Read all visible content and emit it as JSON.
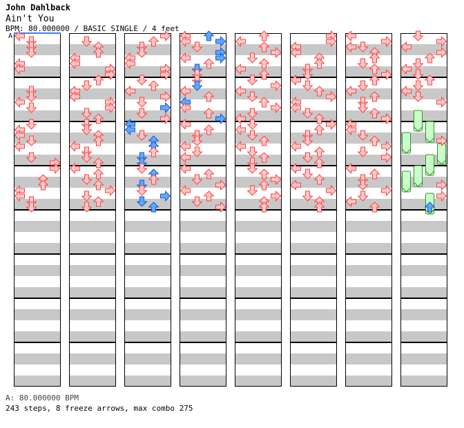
{
  "header": {
    "artist": "John Dahlback",
    "title": "Ain't You",
    "meta": "BPM: 80.000000 / BASIC SINGLE / 4 feet",
    "marker": "A"
  },
  "footer": {
    "bpm_line": "A: 80.000000 BPM",
    "stats_line": "243 steps, 8 freeze arrows, max combo 275"
  },
  "colors": {
    "stripe": "#c8c8c8",
    "red_fill": "#ffc8c8",
    "red_stroke": "#ff4040",
    "blue_fill": "#60a8ff",
    "blue_stroke": "#1858c8",
    "freeze_fill": "#c8ffc8",
    "freeze_stroke": "#309030",
    "marker_line": "#3080ff"
  },
  "chart_data": {
    "type": "stepchart",
    "columns": 8,
    "measures_per_column": 8,
    "lanes": [
      "left",
      "down",
      "up",
      "right"
    ],
    "steps_total": 243,
    "freeze_arrows": 8,
    "max_combo": 275,
    "notes": [
      [
        0,
        0,
        0,
        3
      ],
      [
        0,
        1,
        1,
        3
      ],
      [
        0,
        2,
        1,
        3
      ],
      [
        0,
        3,
        1,
        3
      ],
      [
        0,
        5,
        0,
        3
      ],
      [
        0,
        6,
        0,
        3
      ],
      [
        0,
        10,
        1,
        3
      ],
      [
        0,
        11,
        1,
        3
      ],
      [
        0,
        12,
        0,
        3
      ],
      [
        0,
        13,
        1,
        3
      ],
      [
        0,
        16,
        1,
        3
      ],
      [
        0,
        17,
        0,
        3
      ],
      [
        0,
        18,
        0,
        3
      ],
      [
        0,
        19,
        1,
        3
      ],
      [
        0,
        20,
        0,
        3
      ],
      [
        0,
        22,
        1,
        3
      ],
      [
        0,
        23,
        3,
        3
      ],
      [
        0,
        24,
        3,
        3
      ],
      [
        0,
        26,
        2,
        3
      ],
      [
        0,
        27,
        2,
        3
      ],
      [
        0,
        28,
        0,
        3
      ],
      [
        0,
        29,
        0,
        3
      ],
      [
        0,
        30,
        1,
        3
      ],
      [
        0,
        31,
        1,
        3
      ],
      [
        1,
        1,
        1,
        3
      ],
      [
        1,
        2,
        2,
        3
      ],
      [
        1,
        3,
        2,
        3
      ],
      [
        1,
        4,
        0,
        3
      ],
      [
        1,
        5,
        0,
        3
      ],
      [
        1,
        6,
        3,
        3
      ],
      [
        1,
        7,
        3,
        3
      ],
      [
        1,
        8,
        2,
        3
      ],
      [
        1,
        9,
        1,
        3
      ],
      [
        1,
        10,
        0,
        3
      ],
      [
        1,
        11,
        0,
        3
      ],
      [
        1,
        12,
        3,
        3
      ],
      [
        1,
        13,
        3,
        3
      ],
      [
        1,
        14,
        1,
        3
      ],
      [
        1,
        15,
        2,
        3
      ],
      [
        1,
        16,
        1,
        3
      ],
      [
        1,
        17,
        1,
        3
      ],
      [
        1,
        18,
        2,
        3
      ],
      [
        1,
        19,
        2,
        3
      ],
      [
        1,
        20,
        0,
        3
      ],
      [
        1,
        21,
        1,
        3
      ],
      [
        1,
        22,
        1,
        3
      ],
      [
        1,
        23,
        2,
        3
      ],
      [
        1,
        24,
        0,
        3
      ],
      [
        1,
        25,
        2,
        3
      ],
      [
        1,
        26,
        1,
        3
      ],
      [
        1,
        27,
        2,
        3
      ],
      [
        1,
        28,
        3,
        3
      ],
      [
        1,
        29,
        1,
        3
      ],
      [
        1,
        30,
        2,
        3
      ],
      [
        1,
        31,
        1,
        3
      ],
      [
        2,
        0,
        3,
        3
      ],
      [
        2,
        1,
        2,
        3
      ],
      [
        2,
        2,
        1,
        3
      ],
      [
        2,
        3,
        1,
        3
      ],
      [
        2,
        4,
        0,
        3
      ],
      [
        2,
        5,
        0,
        3
      ],
      [
        2,
        6,
        3,
        3
      ],
      [
        2,
        7,
        3,
        3
      ],
      [
        2,
        8,
        1,
        3
      ],
      [
        2,
        9,
        2,
        3
      ],
      [
        2,
        10,
        0,
        3
      ],
      [
        2,
        11,
        3,
        3
      ],
      [
        2,
        12,
        1,
        3
      ],
      [
        2,
        13,
        3,
        3
      ],
      [
        2,
        13,
        3,
        1
      ],
      [
        2,
        14,
        1,
        3
      ],
      [
        2,
        15,
        3,
        3
      ],
      [
        2,
        16,
        0,
        1
      ],
      [
        2,
        17,
        0,
        1
      ],
      [
        2,
        18,
        1,
        3
      ],
      [
        2,
        19,
        2,
        1
      ],
      [
        2,
        20,
        2,
        1
      ],
      [
        2,
        21,
        2,
        3
      ],
      [
        2,
        22,
        1,
        1
      ],
      [
        2,
        23,
        1,
        1
      ],
      [
        2,
        24,
        1,
        3
      ],
      [
        2,
        25,
        2,
        1
      ],
      [
        2,
        26,
        2,
        3
      ],
      [
        2,
        27,
        1,
        1
      ],
      [
        2,
        28,
        1,
        3
      ],
      [
        2,
        29,
        3,
        1
      ],
      [
        2,
        30,
        1,
        1
      ],
      [
        2,
        31,
        2,
        1
      ],
      [
        3,
        0,
        0,
        3
      ],
      [
        3,
        0,
        2,
        1
      ],
      [
        3,
        1,
        0,
        3
      ],
      [
        3,
        1,
        3,
        1
      ],
      [
        3,
        2,
        1,
        3
      ],
      [
        3,
        3,
        3,
        1
      ],
      [
        3,
        4,
        0,
        3
      ],
      [
        3,
        4,
        3,
        1
      ],
      [
        3,
        5,
        2,
        3
      ],
      [
        3,
        6,
        1,
        1
      ],
      [
        3,
        7,
        1,
        3
      ],
      [
        3,
        8,
        1,
        3
      ],
      [
        3,
        9,
        1,
        1
      ],
      [
        3,
        10,
        0,
        3
      ],
      [
        3,
        11,
        2,
        3
      ],
      [
        3,
        12,
        0,
        1
      ],
      [
        3,
        13,
        0,
        3
      ],
      [
        3,
        14,
        2,
        3
      ],
      [
        3,
        15,
        3,
        1
      ],
      [
        3,
        16,
        0,
        3
      ],
      [
        3,
        17,
        2,
        3
      ],
      [
        3,
        18,
        1,
        3
      ],
      [
        3,
        19,
        1,
        3
      ],
      [
        3,
        20,
        0,
        3
      ],
      [
        3,
        21,
        1,
        3
      ],
      [
        3,
        22,
        0,
        3
      ],
      [
        3,
        24,
        0,
        3
      ],
      [
        3,
        25,
        2,
        3
      ],
      [
        3,
        26,
        1,
        3
      ],
      [
        3,
        27,
        3,
        3
      ],
      [
        3,
        28,
        0,
        3
      ],
      [
        3,
        29,
        2,
        3
      ],
      [
        3,
        30,
        1,
        3
      ],
      [
        3,
        31,
        3,
        3
      ],
      [
        4,
        0,
        2,
        3
      ],
      [
        4,
        1,
        0,
        3
      ],
      [
        4,
        2,
        2,
        3
      ],
      [
        4,
        3,
        3,
        3
      ],
      [
        4,
        4,
        1,
        3
      ],
      [
        4,
        5,
        2,
        3
      ],
      [
        4,
        6,
        0,
        3
      ],
      [
        4,
        7,
        2,
        3
      ],
      [
        4,
        8,
        1,
        3
      ],
      [
        4,
        9,
        3,
        3
      ],
      [
        4,
        10,
        0,
        3
      ],
      [
        4,
        11,
        1,
        3
      ],
      [
        4,
        12,
        2,
        3
      ],
      [
        4,
        13,
        3,
        3
      ],
      [
        4,
        14,
        1,
        3
      ],
      [
        4,
        15,
        0,
        3
      ],
      [
        4,
        16,
        1,
        3
      ],
      [
        4,
        17,
        0,
        3
      ],
      [
        4,
        18,
        1,
        3
      ],
      [
        4,
        19,
        2,
        3
      ],
      [
        4,
        20,
        0,
        3
      ],
      [
        4,
        21,
        1,
        3
      ],
      [
        4,
        22,
        2,
        3
      ],
      [
        4,
        23,
        1,
        3
      ],
      [
        4,
        24,
        1,
        3
      ],
      [
        4,
        25,
        2,
        3
      ],
      [
        4,
        26,
        3,
        3
      ],
      [
        4,
        27,
        2,
        3
      ],
      [
        4,
        28,
        1,
        3
      ],
      [
        4,
        29,
        3,
        3
      ],
      [
        4,
        30,
        2,
        3
      ],
      [
        4,
        31,
        2,
        3
      ],
      [
        5,
        0,
        3,
        3
      ],
      [
        5,
        1,
        3,
        3
      ],
      [
        5,
        2,
        0,
        3
      ],
      [
        5,
        3,
        0,
        3
      ],
      [
        5,
        4,
        2,
        3
      ],
      [
        5,
        5,
        2,
        3
      ],
      [
        5,
        6,
        1,
        3
      ],
      [
        5,
        7,
        1,
        3
      ],
      [
        5,
        8,
        0,
        3
      ],
      [
        5,
        9,
        1,
        3
      ],
      [
        5,
        10,
        2,
        3
      ],
      [
        5,
        11,
        3,
        3
      ],
      [
        5,
        12,
        0,
        3
      ],
      [
        5,
        13,
        0,
        3
      ],
      [
        5,
        14,
        1,
        3
      ],
      [
        5,
        15,
        2,
        3
      ],
      [
        5,
        16,
        3,
        3
      ],
      [
        5,
        17,
        2,
        3
      ],
      [
        5,
        18,
        1,
        3
      ],
      [
        5,
        19,
        1,
        3
      ],
      [
        5,
        20,
        0,
        3
      ],
      [
        5,
        21,
        2,
        3
      ],
      [
        5,
        22,
        1,
        3
      ],
      [
        5,
        23,
        2,
        3
      ],
      [
        5,
        24,
        0,
        3
      ],
      [
        5,
        25,
        1,
        3
      ],
      [
        5,
        26,
        2,
        3
      ],
      [
        5,
        27,
        0,
        3
      ],
      [
        5,
        28,
        3,
        3
      ],
      [
        5,
        29,
        1,
        3
      ],
      [
        5,
        30,
        2,
        3
      ],
      [
        5,
        31,
        2,
        3
      ],
      [
        6,
        0,
        0,
        3
      ],
      [
        6,
        1,
        3,
        3
      ],
      [
        6,
        2,
        0,
        3
      ],
      [
        6,
        2,
        1,
        3
      ],
      [
        6,
        3,
        2,
        3
      ],
      [
        6,
        4,
        2,
        3
      ],
      [
        6,
        5,
        1,
        3
      ],
      [
        6,
        6,
        2,
        3
      ],
      [
        6,
        7,
        3,
        3
      ],
      [
        6,
        8,
        2,
        3
      ],
      [
        6,
        9,
        1,
        3
      ],
      [
        6,
        10,
        0,
        3
      ],
      [
        6,
        11,
        2,
        3
      ],
      [
        6,
        12,
        1,
        3
      ],
      [
        6,
        13,
        1,
        3
      ],
      [
        6,
        14,
        2,
        3
      ],
      [
        6,
        15,
        3,
        3
      ],
      [
        6,
        16,
        0,
        3
      ],
      [
        6,
        17,
        0,
        3
      ],
      [
        6,
        18,
        1,
        3
      ],
      [
        6,
        19,
        2,
        3
      ],
      [
        6,
        20,
        3,
        3
      ],
      [
        6,
        21,
        1,
        3
      ],
      [
        6,
        22,
        3,
        3
      ],
      [
        6,
        24,
        0,
        3
      ],
      [
        6,
        25,
        2,
        3
      ],
      [
        6,
        26,
        1,
        3
      ],
      [
        6,
        27,
        1,
        3
      ],
      [
        6,
        28,
        3,
        3
      ],
      [
        6,
        29,
        1,
        3
      ],
      [
        6,
        30,
        0,
        3
      ],
      [
        6,
        31,
        2,
        3
      ],
      [
        7,
        0,
        1,
        3
      ],
      [
        7,
        1,
        3,
        3
      ],
      [
        7,
        2,
        0,
        3
      ],
      [
        7,
        3,
        3,
        3
      ],
      [
        7,
        4,
        2,
        3
      ],
      [
        7,
        5,
        1,
        3
      ],
      [
        7,
        6,
        0,
        3
      ],
      [
        7,
        7,
        1,
        3
      ],
      [
        7,
        8,
        2,
        3
      ],
      [
        7,
        9,
        1,
        3
      ],
      [
        7,
        10,
        0,
        3
      ],
      [
        7,
        11,
        1,
        3
      ],
      [
        7,
        12,
        3,
        3
      ],
      [
        7,
        19,
        3,
        3
      ],
      [
        7,
        27,
        3,
        3
      ],
      [
        7,
        29,
        3,
        3
      ],
      [
        7,
        31,
        2,
        1
      ]
    ],
    "freezes": [
      [
        7,
        14,
        1,
        3
      ],
      [
        7,
        16,
        2,
        3
      ],
      [
        7,
        18,
        0,
        3
      ],
      [
        7,
        20,
        3,
        3
      ],
      [
        7,
        22,
        2,
        3
      ],
      [
        7,
        24,
        1,
        3
      ],
      [
        7,
        25,
        0,
        3
      ],
      [
        7,
        29,
        2,
        3
      ]
    ]
  }
}
